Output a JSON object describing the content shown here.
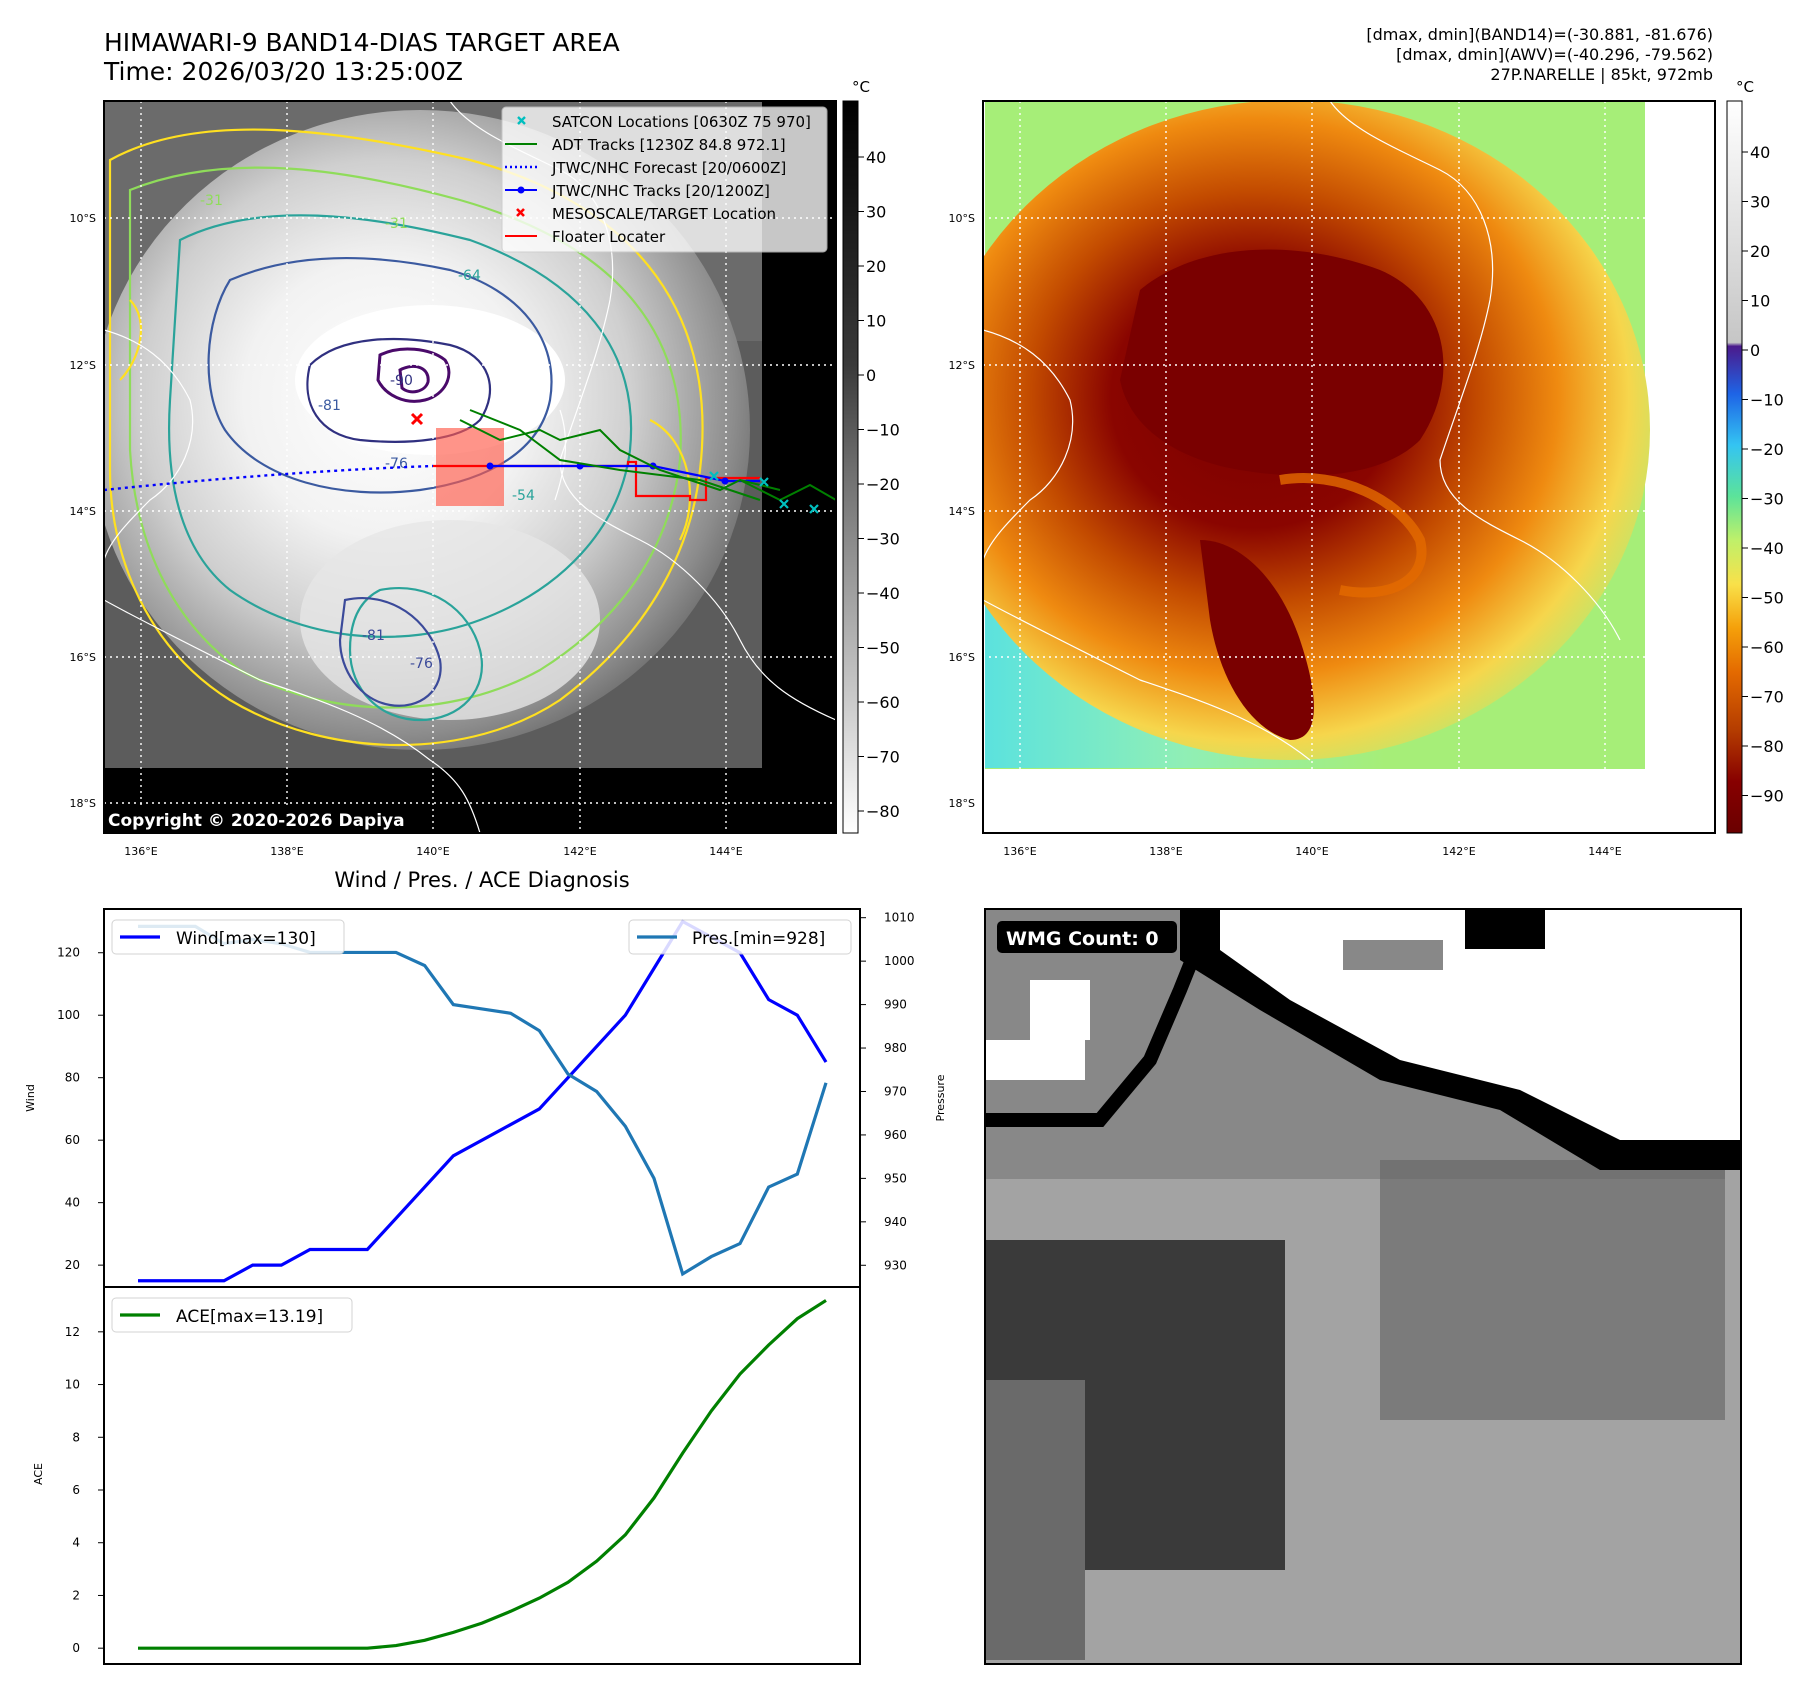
{
  "header": {
    "title": "HIMAWARI-9 BAND14-DIAS TARGET AREA",
    "time": "Time: 2026/03/20 13:25:00Z",
    "info_line1": "[dmax, dmin](BAND14)=(-30.881, -81.676)",
    "info_line2": "[dmax, dmin](AWV)=(-40.296, -79.562)",
    "info_line3": "27P.NARELLE | 85kt, 972mb"
  },
  "colors": {
    "wind": "#0000ff",
    "pressure": "#1f77b4",
    "ace": "#008000",
    "satcon": "#00bfbf",
    "adt": "#008000",
    "forecast": "#0000ff",
    "track": "#0000ff",
    "target": "#ff0000",
    "floater": "#ff0000"
  },
  "map_axes": {
    "lon_ticks": [
      "136°E",
      "138°E",
      "140°E",
      "142°E",
      "144°E"
    ],
    "lat_ticks": [
      "10°S",
      "12°S",
      "14°S",
      "16°S",
      "18°S"
    ],
    "unit": "°C",
    "copyright": "Copyright © 2020-2026 Dapiya"
  },
  "legend": [
    {
      "label": "SATCON Locations [0630Z 75 970]",
      "marker": "x",
      "color": "#00bfbf"
    },
    {
      "label": "ADT Tracks [1230Z 84.8 972.1]",
      "marker": "line",
      "color": "#008000"
    },
    {
      "label": "JTWC/NHC Forecast [20/0600Z]",
      "marker": "dotted",
      "color": "#0000ff"
    },
    {
      "label": "JTWC/NHC Tracks [20/1200Z]",
      "marker": "line-dot",
      "color": "#0000ff"
    },
    {
      "label": "MESOSCALE/TARGET Location",
      "marker": "x",
      "color": "#ff0000"
    },
    {
      "label": "Floater Locater",
      "marker": "line",
      "color": "#ff0000"
    }
  ],
  "contour_labels": [
    "-31",
    "-31",
    "-64",
    "-81",
    "-90",
    "-76",
    "-54",
    "-81",
    "-76"
  ],
  "gray_colorbar": {
    "ticks": [
      "40",
      "30",
      "20",
      "10",
      "0",
      "−10",
      "−20",
      "−30",
      "−40",
      "−50",
      "−60",
      "−70",
      "−80"
    ]
  },
  "color_colorbar": {
    "ticks": [
      "40",
      "30",
      "20",
      "10",
      "0",
      "−10",
      "−20",
      "−30",
      "−40",
      "−50",
      "−60",
      "−70",
      "−80",
      "−90"
    ]
  },
  "wmg": {
    "label": "WMG Count: 0"
  },
  "chart_data": [
    {
      "type": "line",
      "title": "Wind / Pres. / ACE Diagnosis",
      "ylabel": "Wind",
      "ylabel_right": "Pressure",
      "ylim": [
        13,
        134
      ],
      "ylim_right": [
        925,
        1012
      ],
      "yticks": [
        20,
        40,
        60,
        80,
        100,
        120
      ],
      "yticks_right": [
        930,
        940,
        950,
        960,
        970,
        980,
        990,
        1000,
        1010
      ],
      "series": [
        {
          "name": "Wind",
          "legend": "Wind[max=130]",
          "axis": "left",
          "values": [
            15,
            15,
            15,
            15,
            20,
            20,
            25,
            25,
            25,
            35,
            45,
            55,
            60,
            65,
            70,
            80,
            90,
            100,
            115,
            130,
            125,
            120,
            105,
            100,
            85
          ]
        },
        {
          "name": "Pres.",
          "legend": "Pres.[min=928]",
          "axis": "right",
          "values": [
            1008,
            1008,
            1008,
            1004,
            1005,
            1004,
            1002,
            1002,
            1002,
            1002,
            999,
            990,
            989,
            988,
            984,
            974,
            970,
            962,
            950,
            928,
            932,
            935,
            948,
            951,
            972
          ]
        }
      ]
    },
    {
      "type": "line",
      "ylabel": "ACE",
      "ylim": [
        -0.6,
        13.7
      ],
      "yticks": [
        0,
        2,
        4,
        6,
        8,
        10,
        12
      ],
      "series": [
        {
          "name": "ACE",
          "legend": "ACE[max=13.19]",
          "values": [
            0,
            0,
            0,
            0,
            0,
            0,
            0,
            0,
            0,
            0.1,
            0.3,
            0.6,
            0.95,
            1.4,
            1.9,
            2.5,
            3.3,
            4.3,
            5.7,
            7.4,
            9.0,
            10.4,
            11.5,
            12.5,
            13.19
          ]
        }
      ]
    }
  ]
}
